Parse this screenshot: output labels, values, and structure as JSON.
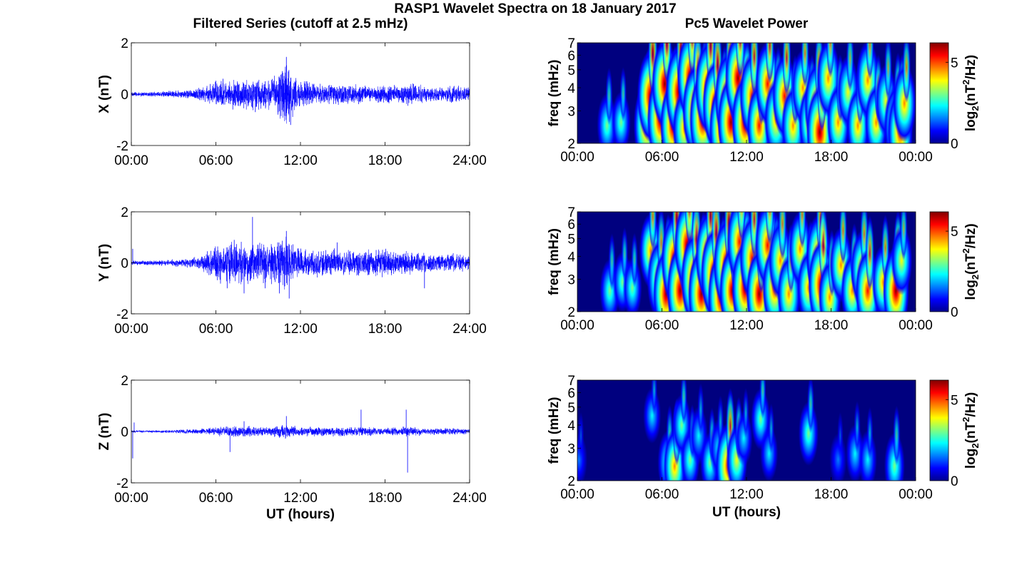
{
  "figure": {
    "title": "RASP1 Wavelet Spectra on 18 January 2017",
    "left_column_title": "Filtered Series (cutoff at 2.5 mHz)",
    "right_column_title": "Pc5 Wavelet Power",
    "colorbar_label_main": "log",
    "colorbar_label_sub": "2",
    "colorbar_label_open": "(nT",
    "colorbar_label_sup": "2",
    "colorbar_label_close": "/Hz)"
  },
  "colors": {
    "trace": "#0000ff",
    "wavelet_background": "#00007f",
    "colormap": [
      "#00008f",
      "#0000ff",
      "#0080ff",
      "#00ffff",
      "#80ff80",
      "#ffff00",
      "#ff8000",
      "#ff0000",
      "#800000"
    ]
  },
  "chart_data": [
    {
      "type": "line",
      "panel": "X",
      "ylabel": "X (nT)",
      "xlabel": "",
      "x_tick_labels": [
        "00:00",
        "06:00",
        "12:00",
        "18:00",
        "24:00"
      ],
      "xlim": [
        0,
        24
      ],
      "y_tick_labels": [
        "-2",
        "0",
        "2"
      ],
      "ylim": [
        -2,
        2
      ],
      "series": [
        {
          "envelope": [
            [
              0,
              0.1
            ],
            [
              1,
              0.1
            ],
            [
              2,
              0.12
            ],
            [
              3,
              0.15
            ],
            [
              4,
              0.2
            ],
            [
              5,
              0.3
            ],
            [
              6,
              0.55
            ],
            [
              7,
              0.55
            ],
            [
              8,
              0.6
            ],
            [
              9,
              0.7
            ],
            [
              10,
              0.7
            ],
            [
              11,
              1.4
            ],
            [
              12,
              0.6
            ],
            [
              13,
              0.45
            ],
            [
              14,
              0.45
            ],
            [
              15,
              0.45
            ],
            [
              16,
              0.45
            ],
            [
              17,
              0.3
            ],
            [
              18,
              0.4
            ],
            [
              19,
              0.4
            ],
            [
              20,
              0.5
            ],
            [
              21,
              0.3
            ],
            [
              22,
              0.3
            ],
            [
              23,
              0.4
            ],
            [
              24,
              0.3
            ]
          ],
          "spikes": [
            [
              6.5,
              0.6
            ],
            [
              7.2,
              -0.6
            ],
            [
              8.8,
              -0.7
            ],
            [
              9.5,
              0.5
            ],
            [
              10.4,
              -0.8
            ],
            [
              11.0,
              1.45
            ],
            [
              11.3,
              -1.2
            ],
            [
              12.4,
              0.5
            ]
          ]
        }
      ]
    },
    {
      "type": "line",
      "panel": "Y",
      "ylabel": "Y (nT)",
      "xlabel": "",
      "x_tick_labels": [
        "00:00",
        "06:00",
        "12:00",
        "18:00",
        "24:00"
      ],
      "xlim": [
        0,
        24
      ],
      "y_tick_labels": [
        "-2",
        "0",
        "2"
      ],
      "ylim": [
        -2,
        2
      ],
      "series": [
        {
          "envelope": [
            [
              0,
              0.1
            ],
            [
              1,
              0.1
            ],
            [
              2,
              0.12
            ],
            [
              3,
              0.15
            ],
            [
              4,
              0.2
            ],
            [
              5,
              0.3
            ],
            [
              6,
              0.8
            ],
            [
              7,
              0.9
            ],
            [
              8,
              0.95
            ],
            [
              9,
              0.85
            ],
            [
              10,
              0.9
            ],
            [
              11,
              1.1
            ],
            [
              12,
              0.6
            ],
            [
              13,
              0.6
            ],
            [
              14,
              0.7
            ],
            [
              15,
              0.5
            ],
            [
              16,
              0.55
            ],
            [
              17,
              0.6
            ],
            [
              18,
              0.6
            ],
            [
              19,
              0.5
            ],
            [
              20,
              0.5
            ],
            [
              21,
              0.4
            ],
            [
              22,
              0.35
            ],
            [
              23,
              0.4
            ],
            [
              24,
              0.35
            ]
          ],
          "spikes": [
            [
              0.1,
              0.55
            ],
            [
              6.8,
              -1.0
            ],
            [
              7.3,
              0.9
            ],
            [
              8.0,
              -1.2
            ],
            [
              8.6,
              1.8
            ],
            [
              9.5,
              -1.0
            ],
            [
              10.5,
              -1.2
            ],
            [
              11.0,
              1.25
            ],
            [
              11.2,
              -1.4
            ],
            [
              14.6,
              0.8
            ],
            [
              20.8,
              -1.0
            ]
          ]
        }
      ]
    },
    {
      "type": "line",
      "panel": "Z",
      "ylabel": "Z (nT)",
      "xlabel": "UT (hours)",
      "x_tick_labels": [
        "00:00",
        "06:00",
        "12:00",
        "18:00",
        "24:00"
      ],
      "xlim": [
        0,
        24
      ],
      "y_tick_labels": [
        "-2",
        "0",
        "2"
      ],
      "ylim": [
        -2,
        2
      ],
      "series": [
        {
          "envelope": [
            [
              0,
              0.06
            ],
            [
              1,
              0.05
            ],
            [
              2,
              0.06
            ],
            [
              3,
              0.07
            ],
            [
              4,
              0.1
            ],
            [
              5,
              0.12
            ],
            [
              6,
              0.18
            ],
            [
              7,
              0.22
            ],
            [
              8,
              0.25
            ],
            [
              9,
              0.2
            ],
            [
              10,
              0.2
            ],
            [
              11,
              0.3
            ],
            [
              12,
              0.2
            ],
            [
              13,
              0.2
            ],
            [
              14,
              0.2
            ],
            [
              15,
              0.2
            ],
            [
              16,
              0.2
            ],
            [
              17,
              0.2
            ],
            [
              18,
              0.15
            ],
            [
              19,
              0.2
            ],
            [
              20,
              0.2
            ],
            [
              21,
              0.15
            ],
            [
              22,
              0.15
            ],
            [
              23,
              0.15
            ],
            [
              24,
              0.1
            ]
          ],
          "spikes": [
            [
              0.1,
              -1.05
            ],
            [
              0.2,
              0.35
            ],
            [
              7.0,
              -0.8
            ],
            [
              8.0,
              0.4
            ],
            [
              11.0,
              0.6
            ],
            [
              16.3,
              0.85
            ],
            [
              19.5,
              0.85
            ],
            [
              19.6,
              -1.6
            ]
          ]
        }
      ]
    },
    {
      "type": "heatmap",
      "panel": "X",
      "ylabel": "freq (mHz)",
      "xlabel": "",
      "x_tick_labels": [
        "00:00",
        "06:00",
        "12:00",
        "18:00",
        "00:00"
      ],
      "xlim": [
        0,
        24
      ],
      "y_tick_labels": [
        "2",
        "3",
        "4",
        "5",
        "6",
        "7"
      ],
      "ylim": [
        2,
        7
      ],
      "y_scale": "log",
      "colorbar_ticks": [
        "0",
        "5"
      ],
      "colorbar_range": [
        0,
        6.2
      ],
      "blobs": [
        [
          2.1,
          2.5,
          0.5
        ],
        [
          3.1,
          2.6,
          0.45
        ],
        [
          4.9,
          2.5,
          0.9
        ],
        [
          5.2,
          3.6,
          1.0
        ],
        [
          5.9,
          2.7,
          1.0
        ],
        [
          6.2,
          4.2,
          0.95
        ],
        [
          6.8,
          2.5,
          0.95
        ],
        [
          7.2,
          3.8,
          1.0
        ],
        [
          7.6,
          2.4,
          0.8
        ],
        [
          8.0,
          4.6,
          0.95
        ],
        [
          8.4,
          3.0,
          1.0
        ],
        [
          8.9,
          2.7,
          1.0
        ],
        [
          9.3,
          4.0,
          1.0
        ],
        [
          9.8,
          3.2,
          0.95
        ],
        [
          10.3,
          2.4,
          1.0
        ],
        [
          10.7,
          3.5,
          1.0
        ],
        [
          10.9,
          2.6,
          1.0
        ],
        [
          11.4,
          4.5,
          0.95
        ],
        [
          11.9,
          2.6,
          1.0
        ],
        [
          12.4,
          3.6,
          0.9
        ],
        [
          12.9,
          2.5,
          0.85
        ],
        [
          13.5,
          4.2,
          0.85
        ],
        [
          14.1,
          2.7,
          0.8
        ],
        [
          14.7,
          3.6,
          0.85
        ],
        [
          15.3,
          2.5,
          0.75
        ],
        [
          16.0,
          4.0,
          0.7
        ],
        [
          16.5,
          2.6,
          0.7
        ],
        [
          17.0,
          3.2,
          0.9
        ],
        [
          17.2,
          2.3,
          1.0
        ],
        [
          17.8,
          4.5,
          0.75
        ],
        [
          18.5,
          2.6,
          0.7
        ],
        [
          19.2,
          3.8,
          0.65
        ],
        [
          19.9,
          2.5,
          0.7
        ],
        [
          20.6,
          4.4,
          0.75
        ],
        [
          21.2,
          2.6,
          0.7
        ],
        [
          21.9,
          3.4,
          0.65
        ],
        [
          22.6,
          2.5,
          0.8
        ],
        [
          22.9,
          2.3,
          0.9
        ],
        [
          23.2,
          3.3,
          0.75
        ]
      ]
    },
    {
      "type": "heatmap",
      "panel": "Y",
      "ylabel": "freq (mHz)",
      "xlabel": "",
      "x_tick_labels": [
        "00:00",
        "06:00",
        "12:00",
        "18:00",
        "00:00"
      ],
      "xlim": [
        0,
        24
      ],
      "y_tick_labels": [
        "2",
        "3",
        "4",
        "5",
        "6",
        "7"
      ],
      "ylim": [
        2,
        7
      ],
      "y_scale": "log",
      "colorbar_ticks": [
        "0",
        "5"
      ],
      "colorbar_range": [
        0,
        6.2
      ],
      "blobs": [
        [
          2.3,
          2.6,
          0.5
        ],
        [
          3.2,
          2.9,
          0.45
        ],
        [
          3.9,
          2.7,
          0.45
        ],
        [
          5.2,
          4.3,
          0.7
        ],
        [
          5.8,
          3.0,
          0.8
        ],
        [
          6.3,
          2.5,
          0.95
        ],
        [
          6.9,
          3.8,
          1.0
        ],
        [
          7.3,
          2.6,
          1.0
        ],
        [
          7.8,
          4.6,
          0.95
        ],
        [
          8.3,
          3.0,
          1.0
        ],
        [
          8.8,
          2.5,
          1.0
        ],
        [
          9.3,
          4.0,
          0.95
        ],
        [
          9.7,
          3.2,
          1.0
        ],
        [
          10.2,
          2.4,
          1.0
        ],
        [
          10.6,
          3.6,
          1.0
        ],
        [
          11.0,
          2.6,
          0.95
        ],
        [
          11.5,
          4.8,
          0.9
        ],
        [
          11.9,
          2.7,
          1.0
        ],
        [
          12.4,
          3.9,
          0.9
        ],
        [
          12.9,
          2.5,
          0.95
        ],
        [
          13.5,
          4.6,
          0.9
        ],
        [
          14.0,
          2.7,
          0.85
        ],
        [
          14.4,
          3.8,
          0.8
        ],
        [
          15.0,
          2.5,
          0.75
        ],
        [
          15.8,
          4.4,
          0.7
        ],
        [
          16.4,
          2.7,
          0.7
        ],
        [
          17.1,
          4.0,
          0.85
        ],
        [
          17.3,
          2.8,
          0.95
        ],
        [
          17.9,
          2.4,
          0.7
        ],
        [
          18.7,
          3.6,
          0.7
        ],
        [
          19.5,
          2.6,
          0.7
        ],
        [
          20.2,
          3.4,
          0.75
        ],
        [
          20.6,
          2.6,
          0.85
        ],
        [
          21.7,
          2.9,
          0.7
        ],
        [
          22.6,
          2.6,
          0.95
        ],
        [
          23.0,
          3.8,
          0.6
        ]
      ]
    },
    {
      "type": "heatmap",
      "panel": "Z",
      "ylabel": "freq (mHz)",
      "xlabel": "UT (hours)",
      "x_tick_labels": [
        "00:00",
        "06:00",
        "12:00",
        "18:00",
        "00:00"
      ],
      "xlim": [
        0,
        24
      ],
      "y_tick_labels": [
        "2",
        "3",
        "4",
        "5",
        "6",
        "7"
      ],
      "ylim": [
        2,
        7
      ],
      "y_scale": "log",
      "colorbar_ticks": [
        "0",
        "5"
      ],
      "colorbar_range": [
        0,
        6.2
      ],
      "blobs": [
        [
          0.1,
          2.6,
          0.3
        ],
        [
          5.3,
          4.5,
          0.35
        ],
        [
          6.4,
          2.5,
          0.5
        ],
        [
          6.9,
          2.4,
          0.7
        ],
        [
          7.4,
          4.0,
          0.45
        ],
        [
          8.0,
          2.6,
          0.45
        ],
        [
          8.6,
          3.5,
          0.4
        ],
        [
          9.4,
          2.5,
          0.45
        ],
        [
          10.0,
          3.0,
          0.4
        ],
        [
          10.7,
          2.4,
          0.9
        ],
        [
          11.3,
          2.6,
          0.6
        ],
        [
          11.8,
          3.4,
          0.35
        ],
        [
          13.0,
          4.3,
          0.45
        ],
        [
          13.6,
          2.8,
          0.35
        ],
        [
          16.4,
          3.6,
          0.5
        ],
        [
          18.5,
          2.6,
          0.3
        ],
        [
          19.7,
          2.8,
          0.4
        ],
        [
          20.6,
          2.6,
          0.4
        ],
        [
          22.5,
          2.4,
          0.55
        ]
      ]
    }
  ]
}
